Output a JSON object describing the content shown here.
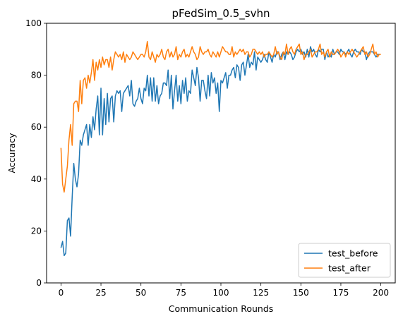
{
  "chart_data": {
    "type": "line",
    "title": "pFedSim_0.5_svhn",
    "xlabel": "Communication Rounds",
    "ylabel": "Accuracy",
    "xlim": [
      -9,
      209
    ],
    "ylim": [
      0,
      100
    ],
    "xticks": [
      0,
      25,
      50,
      75,
      100,
      125,
      150,
      175,
      200
    ],
    "yticks": [
      0,
      20,
      40,
      60,
      80,
      100
    ],
    "grid": false,
    "legend_position": "lower-right",
    "series": [
      {
        "name": "test_before",
        "color": "#1f77b4",
        "values": [
          13.5,
          16,
          10.5,
          11.5,
          24,
          25,
          18,
          33,
          46,
          40,
          37,
          42,
          55,
          53,
          57,
          59,
          61,
          53,
          61,
          56,
          64,
          59,
          67,
          72,
          57,
          75,
          57,
          71,
          61,
          73,
          62,
          71,
          72,
          62,
          72,
          74,
          73,
          74,
          66,
          73,
          74,
          75,
          76,
          72,
          78,
          69,
          68,
          70,
          71,
          75,
          71,
          69,
          75,
          74,
          80,
          72,
          79,
          70,
          79,
          70,
          76,
          69,
          72,
          73,
          77,
          77,
          76,
          82,
          71,
          80,
          67,
          74,
          80,
          70,
          76,
          69,
          78,
          73,
          79,
          70,
          74,
          73,
          82,
          79,
          76,
          83,
          79,
          70,
          78,
          78,
          74,
          71,
          80,
          72,
          81,
          77,
          79,
          73,
          77,
          66,
          78,
          77,
          79,
          81,
          75,
          80,
          80,
          82,
          83,
          79,
          84,
          83,
          78,
          84,
          85,
          80,
          84,
          88,
          83,
          85,
          84,
          89,
          82,
          87,
          86,
          85,
          86,
          88,
          86,
          85,
          89,
          87,
          85,
          88,
          87,
          89,
          89,
          86,
          88,
          89,
          86,
          89,
          88,
          89,
          88,
          86,
          87,
          89,
          90,
          89,
          90,
          88,
          89,
          87,
          90,
          87,
          91,
          89,
          90,
          88,
          87,
          90,
          89,
          90,
          90,
          86,
          89,
          87,
          88,
          87,
          90,
          88,
          89,
          89,
          88,
          90,
          89,
          89,
          88,
          89,
          90,
          88,
          87,
          89,
          90,
          89,
          89,
          88,
          90,
          89,
          89,
          86,
          88,
          89,
          89,
          89,
          88,
          87,
          88,
          88
        ]
      },
      {
        "name": "test_after",
        "color": "#ff7f0e",
        "values": [
          52,
          38,
          35,
          40,
          45,
          55,
          61,
          53,
          69,
          70,
          70,
          66,
          78,
          69,
          78,
          79,
          75,
          80,
          77,
          81,
          86,
          78,
          85,
          82,
          86,
          83,
          87,
          84,
          86,
          86,
          83,
          87,
          82,
          86,
          89,
          88,
          87,
          88,
          86,
          89,
          85,
          88,
          87,
          86,
          87,
          89,
          88,
          87,
          86,
          87,
          88,
          88,
          87,
          89,
          93,
          87,
          86,
          89,
          87,
          85,
          88,
          87,
          88,
          90,
          87,
          86,
          89,
          90,
          87,
          89,
          87,
          88,
          91,
          86,
          88,
          87,
          89,
          90,
          87,
          88,
          87,
          89,
          91,
          89,
          88,
          86,
          87,
          91,
          89,
          88,
          89,
          89,
          90,
          88,
          87,
          89,
          88,
          87,
          89,
          87,
          89,
          91,
          90,
          89,
          89,
          88,
          88,
          91,
          87,
          89,
          88,
          89,
          90,
          89,
          90,
          88,
          89,
          89,
          87,
          88,
          90,
          90,
          89,
          88,
          89,
          88,
          89,
          87,
          88,
          88,
          89,
          88,
          87,
          88,
          91,
          88,
          89,
          87,
          86,
          89,
          88,
          92,
          88,
          90,
          91,
          89,
          88,
          90,
          91,
          92,
          88,
          89,
          86,
          88,
          88,
          89,
          90,
          87,
          88,
          89,
          89,
          90,
          92,
          88,
          89,
          87,
          89,
          90,
          87,
          89,
          88,
          88,
          89,
          90,
          89,
          87,
          88,
          89,
          87,
          89,
          88,
          89,
          90,
          89,
          88,
          87,
          88,
          89,
          90,
          91,
          88,
          89,
          87,
          88,
          90,
          92,
          88,
          89,
          87,
          88,
          88
        ]
      }
    ]
  }
}
